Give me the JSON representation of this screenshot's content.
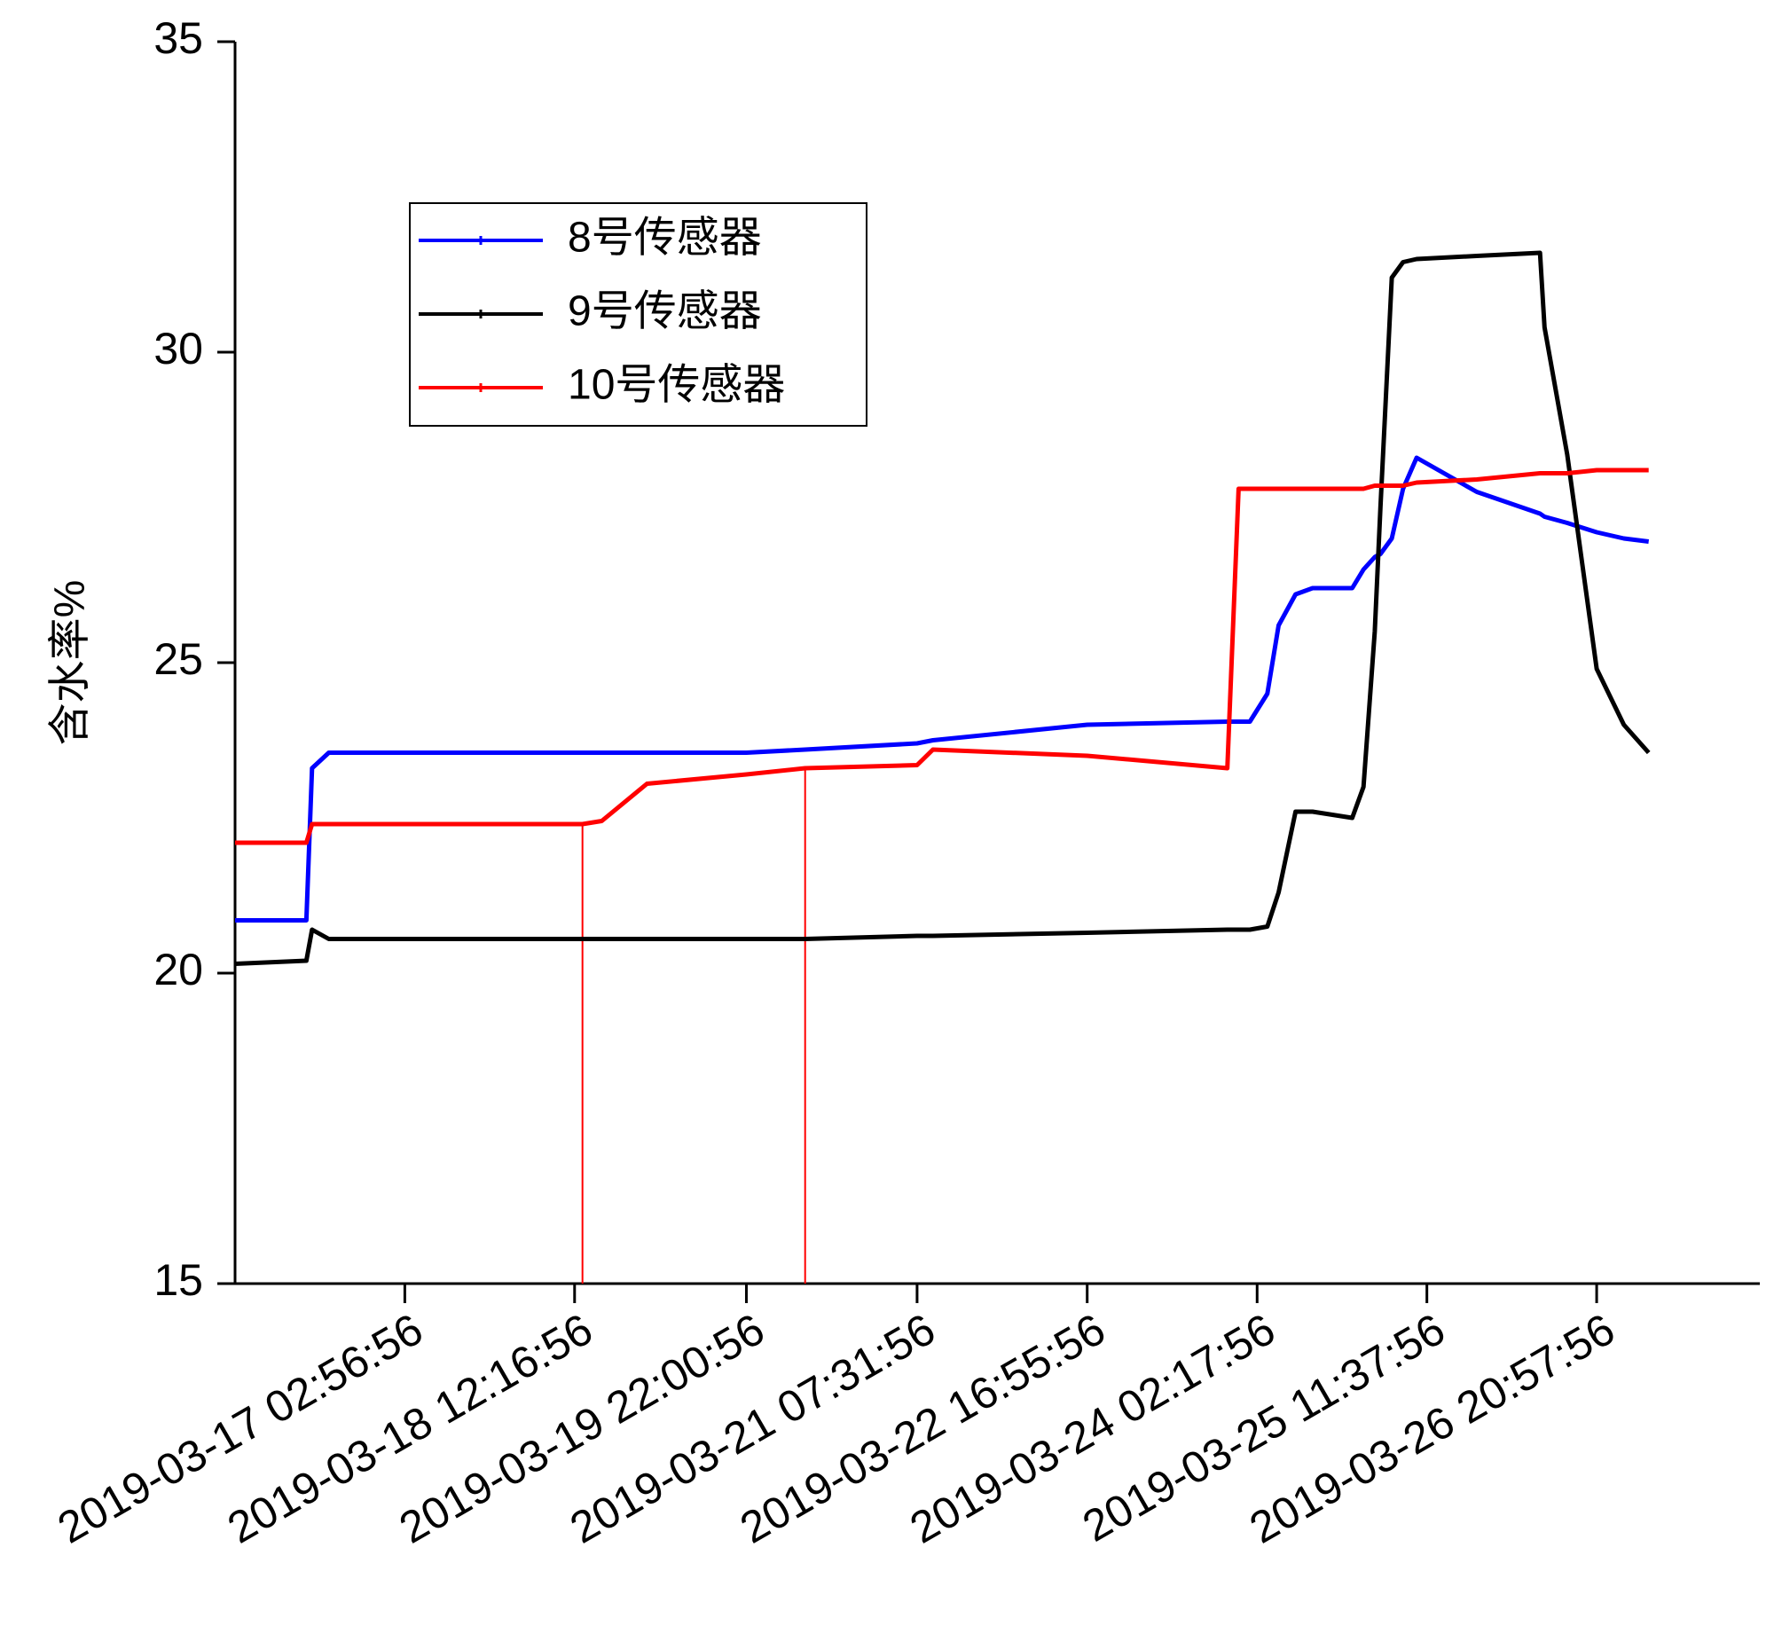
{
  "chart_data": {
    "type": "line",
    "y_label": "含水率%",
    "x": [
      "2019-03-15 17:37",
      "2019-03-16 07:37",
      "2019-03-16 08:44",
      "2019-03-16 12:02",
      "2019-03-17 02:57",
      "2019-03-18 12:17",
      "2019-03-18 13:50",
      "2019-03-18 17:37",
      "2019-03-19 02:30",
      "2019-03-19 22:01",
      "2019-03-20 09:33",
      "2019-03-21 07:32",
      "2019-03-21 10:39",
      "2019-03-22 16:56",
      "2019-03-23 20:27",
      "2019-03-23 22:40",
      "2019-03-24 00:53",
      "2019-03-24 04:18",
      "2019-03-24 06:31",
      "2019-03-24 09:51",
      "2019-03-24 13:11",
      "2019-03-24 20:58",
      "2019-03-24 23:11",
      "2019-03-25 01:24",
      "2019-03-25 02:31",
      "2019-03-25 04:44",
      "2019-03-25 06:57",
      "2019-03-25 09:37",
      "2019-03-25 21:25",
      "2019-03-26 09:51",
      "2019-03-26 10:44",
      "2019-03-26 15:11",
      "2019-03-26 20:58",
      "2019-03-27 02:18",
      "2019-03-27 07:11"
    ],
    "series": [
      {
        "name": "8号传感器",
        "color": "#0000ff",
        "values": [
          20.85,
          20.85,
          23.3,
          23.55,
          23.55,
          23.55,
          23.55,
          23.55,
          23.55,
          23.55,
          23.6,
          23.7,
          23.75,
          24.0,
          24.05,
          24.05,
          24.05,
          24.5,
          25.6,
          26.1,
          26.2,
          26.2,
          26.5,
          26.7,
          26.75,
          27.0,
          27.8,
          28.3,
          27.75,
          27.4,
          27.35,
          27.25,
          27.1,
          27.0,
          26.95
        ]
      },
      {
        "name": "9号传感器",
        "color": "#000000",
        "values": [
          20.15,
          20.2,
          20.7,
          20.55,
          20.55,
          20.55,
          20.55,
          20.55,
          20.55,
          20.55,
          20.55,
          20.6,
          20.6,
          20.65,
          20.7,
          20.7,
          20.7,
          20.75,
          21.3,
          22.6,
          22.6,
          22.5,
          23.0,
          25.5,
          27.5,
          31.2,
          31.45,
          31.5,
          31.55,
          31.6,
          30.4,
          28.35,
          24.9,
          24.0,
          23.55
        ]
      },
      {
        "name": "10号传感器",
        "color": "#ff0000",
        "values": [
          22.1,
          22.1,
          22.4,
          22.4,
          22.4,
          22.4,
          22.4,
          22.45,
          23.05,
          23.2,
          23.3,
          23.35,
          23.6,
          23.5,
          23.3,
          27.8,
          27.8,
          27.8,
          27.8,
          27.8,
          27.8,
          27.8,
          27.8,
          27.85,
          27.85,
          27.85,
          27.85,
          27.9,
          27.95,
          28.05,
          28.05,
          28.05,
          28.1,
          28.1,
          28.1
        ]
      }
    ],
    "reference_lines": [
      {
        "x": "2019-03-18 13:50",
        "y": 22.4,
        "color": "#ff0000"
      },
      {
        "x": "2019-03-20 09:33",
        "y": 23.3,
        "color": "#ff0000"
      }
    ],
    "xlim": [
      "2019-03-15 17:37",
      "2019-03-28 05:00"
    ],
    "xticks": [
      "2019-03-17 02:56:56",
      "2019-03-18 12:16:56",
      "2019-03-19 22:00:56",
      "2019-03-21 07:31:56",
      "2019-03-22 16:55:56",
      "2019-03-24 02:17:56",
      "2019-03-25 11:37:56",
      "2019-03-26 20:57:56"
    ],
    "ylim": [
      15,
      35
    ],
    "yticks": [
      15,
      20,
      25,
      30,
      35
    ],
    "legend": "upper-left"
  }
}
